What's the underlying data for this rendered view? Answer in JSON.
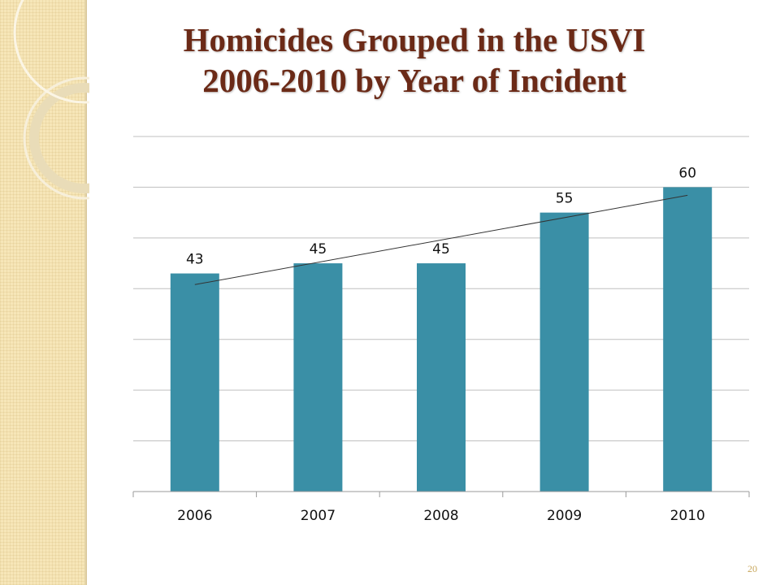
{
  "slide": {
    "title_line1": "Homicides Grouped in the USVI",
    "title_line2": "2006-2010 by Year of Incident",
    "slide_number": "20",
    "colors": {
      "title": "#6b2a17",
      "bar": "#3a8fa6",
      "sidebar": "#f6e6b8"
    }
  },
  "chart_data": {
    "type": "bar",
    "categories": [
      "2006",
      "2007",
      "2008",
      "2009",
      "2010"
    ],
    "values": [
      43,
      45,
      45,
      55,
      60
    ],
    "ylim": [
      0,
      70
    ],
    "grid": true,
    "trendline": "linear",
    "data_labels": true
  }
}
